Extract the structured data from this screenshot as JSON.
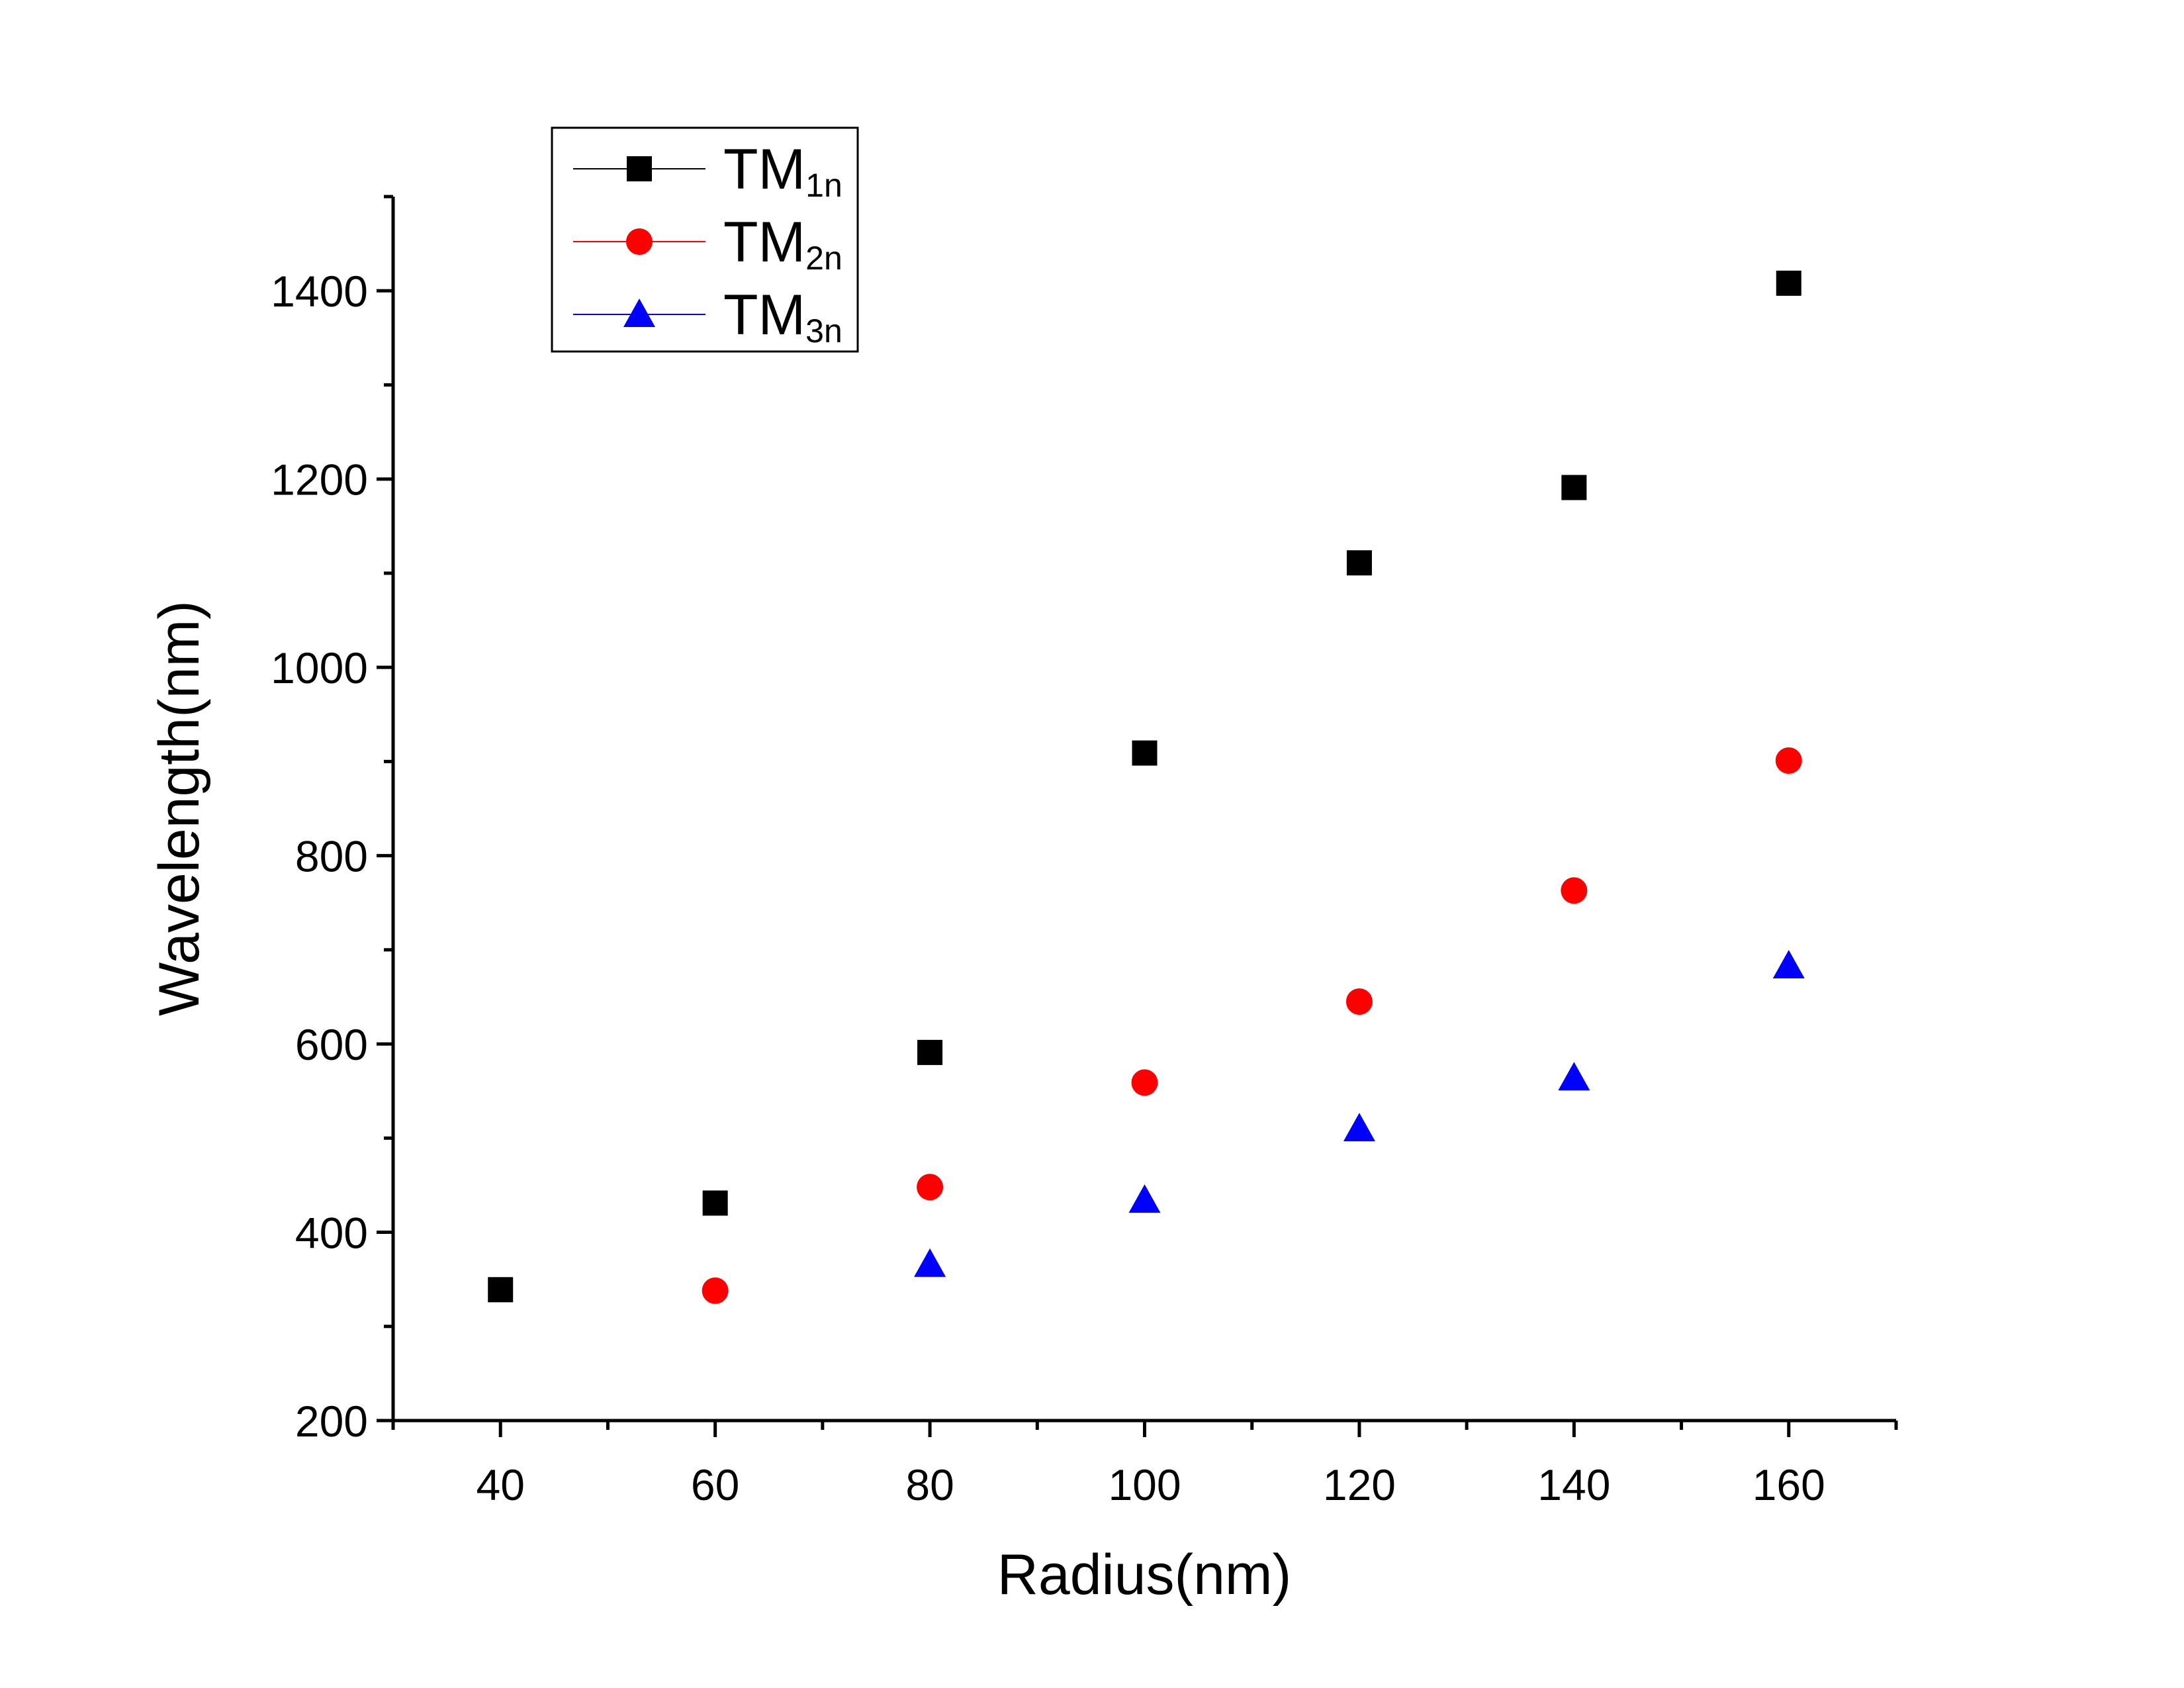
{
  "chart_data": {
    "type": "scatter",
    "xlabel": "Radius(nm)",
    "ylabel": "Wavelength(nm)",
    "xlim": [
      30,
      170
    ],
    "ylim": [
      200,
      1500
    ],
    "x_ticks": [
      "40",
      "60",
      "80",
      "100",
      "120",
      "140",
      "160"
    ],
    "y_ticks": [
      "200",
      "400",
      "600",
      "800",
      "1000",
      "1200",
      "1400"
    ],
    "grid": false,
    "legend_position": "top-left",
    "series": [
      {
        "name": "TM1n",
        "label_main": "TM",
        "label_sub": "1n",
        "color": "#000000",
        "marker": "square",
        "x": [
          40,
          60,
          80,
          100,
          120,
          140,
          160
        ],
        "y": [
          339,
          431,
          591,
          909,
          1111,
          1191,
          1408
        ]
      },
      {
        "name": "TM2n",
        "label_main": "TM",
        "label_sub": "2n",
        "color": "#ff0000",
        "marker": "circle",
        "x": [
          60,
          80,
          100,
          120,
          140,
          160
        ],
        "y": [
          338,
          448,
          559,
          645,
          763,
          901
        ]
      },
      {
        "name": "TM3n",
        "label_main": "TM",
        "label_sub": "3n",
        "color": "#0000ff",
        "marker": "triangle",
        "x": [
          80,
          100,
          120,
          140,
          160
        ],
        "y": [
          366,
          434,
          510,
          564,
          683
        ]
      }
    ]
  }
}
